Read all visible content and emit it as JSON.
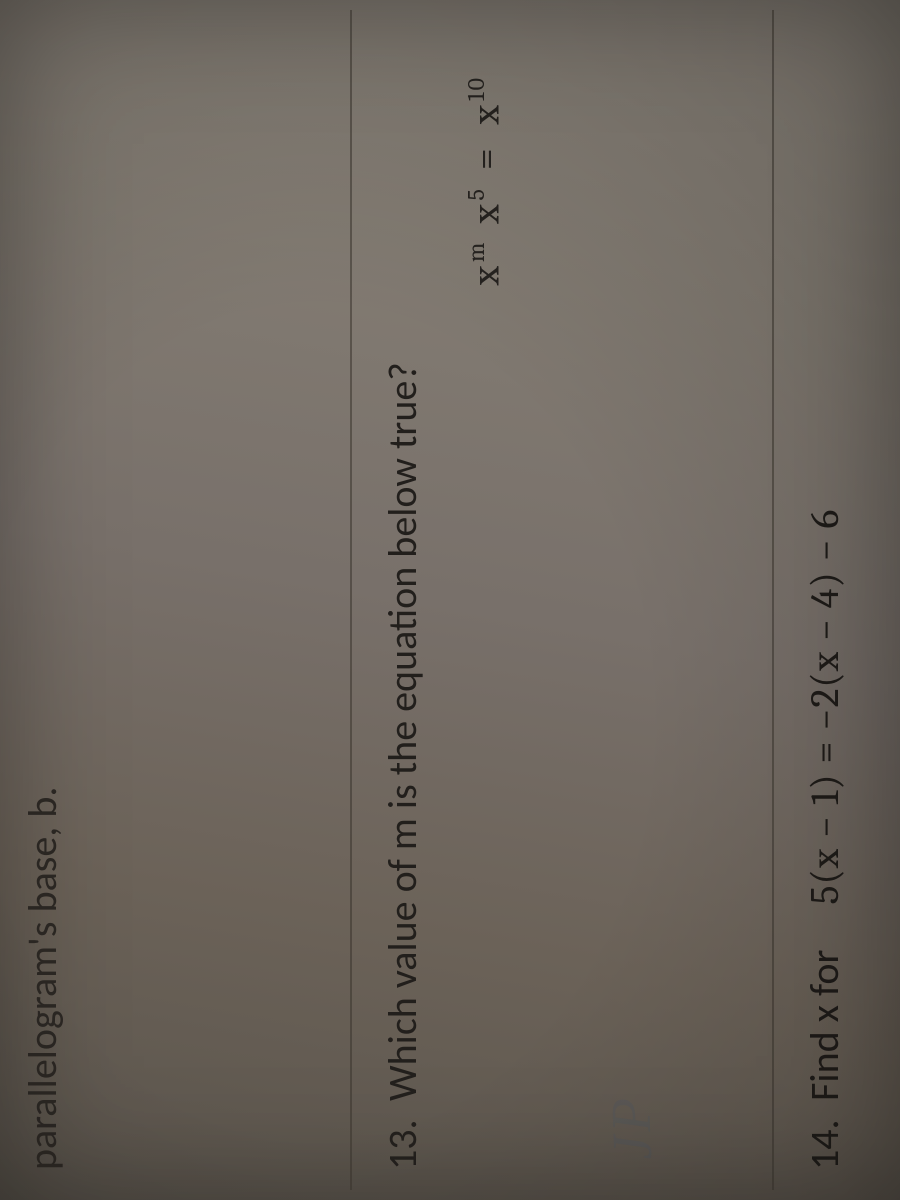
{
  "page": {
    "background_color": "#6b6258",
    "text_color": "#1c1a18",
    "divider_color": "#3a342e",
    "font_family_body": "Calibri",
    "font_family_math": "Cambria Math",
    "body_fontsize_pt": 30
  },
  "top_fragment": {
    "text": "parallelogram's base, b."
  },
  "q13": {
    "number": "13.",
    "prompt": "Which value of m is the equation below true?",
    "equation_plain": "x^m x^5 = x^10",
    "equation_parts": {
      "lhs_base1": "x",
      "lhs_exp1": "m",
      "lhs_base2": "x",
      "lhs_exp2": "5",
      "eq": "=",
      "rhs_base": "x",
      "rhs_exp": "10"
    }
  },
  "q14": {
    "number": "14.",
    "prompt": "Find x for",
    "equation": "5(x − 1) = −2(x − 4) − 6"
  },
  "handwriting": {
    "faint_text": "JP"
  }
}
